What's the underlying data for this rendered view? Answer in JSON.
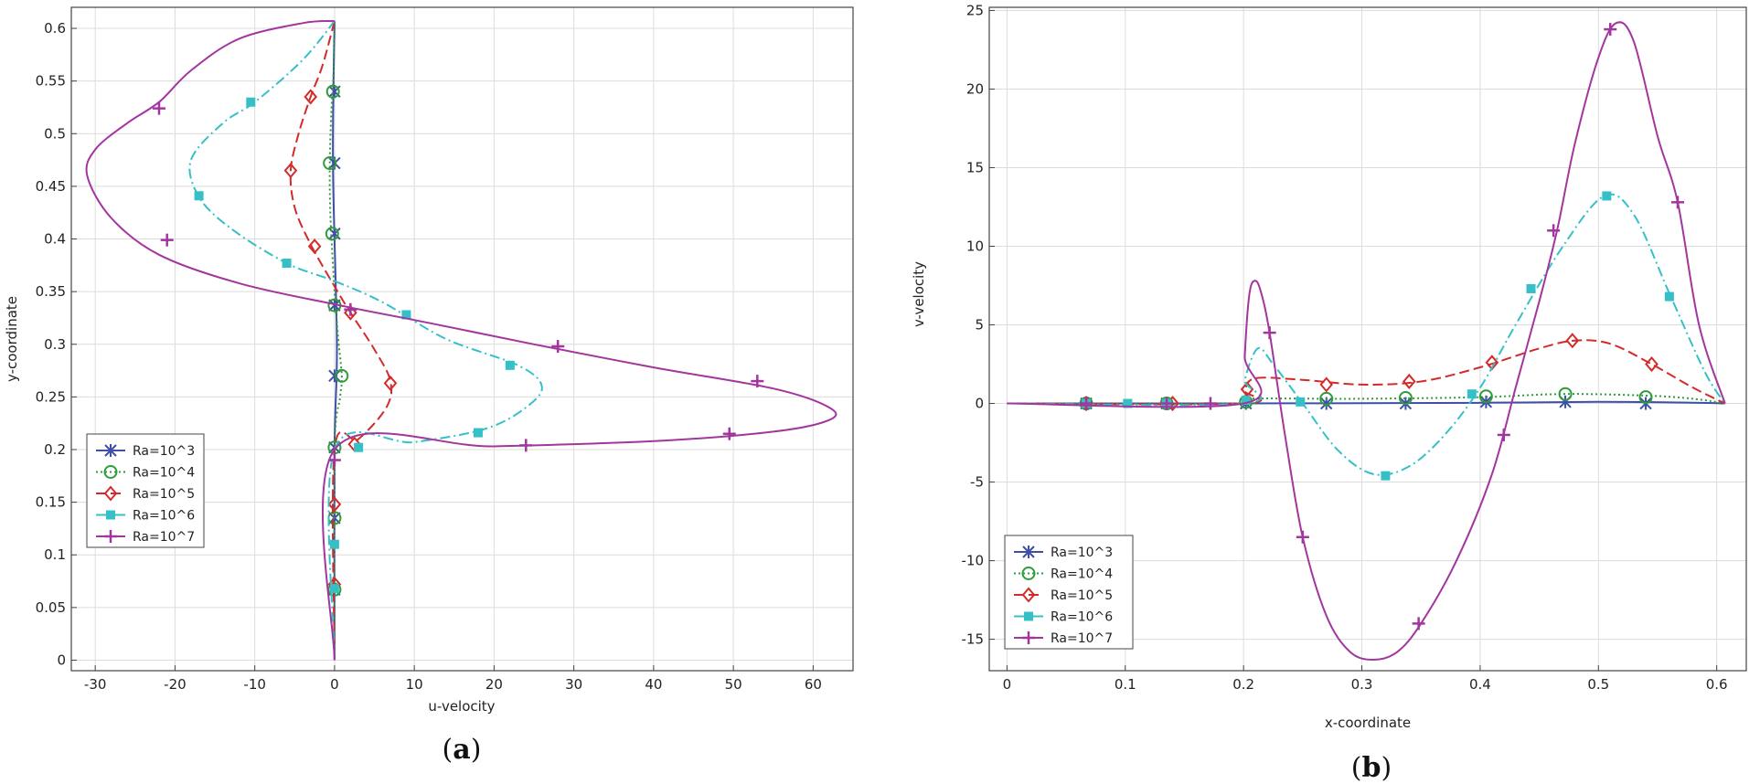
{
  "colors": {
    "ra3": "#3f4ea8",
    "ra4": "#2e9c3a",
    "ra5": "#d42a2a",
    "ra6": "#35c0c8",
    "ra7": "#a2369e"
  },
  "chart_data": [
    {
      "type": "line",
      "panel_label_paren_open": "(",
      "panel_label": "a",
      "panel_label_paren_close": ")",
      "xlabel": "u-velocity",
      "ylabel": "y-coordinate",
      "xlim": [
        -33,
        65
      ],
      "ylim": [
        -0.01,
        0.62
      ],
      "xticks": [
        -30,
        -20,
        -10,
        0,
        10,
        20,
        30,
        40,
        50,
        60
      ],
      "yticks": [
        0,
        0.05,
        0.1,
        0.15,
        0.2,
        0.25,
        0.3,
        0.35,
        0.4,
        0.45,
        0.5,
        0.55,
        0.6
      ],
      "grid": true,
      "legend_position": "bottom-left",
      "series": [
        {
          "name": "Ra=10^3",
          "style": "solid",
          "marker": "asterisk",
          "points": [
            [
              0,
              0
            ],
            [
              0,
              0.2
            ],
            [
              0.3,
              0.3
            ],
            [
              -0.2,
              0.47
            ],
            [
              0,
              0.607
            ]
          ],
          "markers": [
            [
              0,
              0.067
            ],
            [
              0,
              0.135
            ],
            [
              0,
              0.202
            ],
            [
              0,
              0.27
            ],
            [
              0,
              0.337
            ],
            [
              0,
              0.405
            ],
            [
              0,
              0.472
            ],
            [
              0,
              0.54
            ]
          ]
        },
        {
          "name": "Ra=10^4",
          "style": "dotted",
          "marker": "circle",
          "points": [
            [
              0,
              0
            ],
            [
              0,
              0.2
            ],
            [
              0.7,
              0.25
            ],
            [
              0.9,
              0.27
            ],
            [
              0.4,
              0.31
            ],
            [
              0,
              0.35
            ],
            [
              -0.5,
              0.42
            ],
            [
              -0.6,
              0.47
            ],
            [
              -0.4,
              0.52
            ],
            [
              -0.1,
              0.56
            ],
            [
              0,
              0.607
            ]
          ],
          "markers": [
            [
              0,
              0.067
            ],
            [
              0,
              0.135
            ],
            [
              0,
              0.202
            ],
            [
              0.9,
              0.27
            ],
            [
              0,
              0.337
            ],
            [
              -0.3,
              0.405
            ],
            [
              -0.6,
              0.472
            ],
            [
              -0.2,
              0.54
            ]
          ]
        },
        {
          "name": "Ra=10^5",
          "style": "dashed",
          "marker": "diamond",
          "points": [
            [
              0,
              0
            ],
            [
              0,
              0.2
            ],
            [
              3,
              0.21
            ],
            [
              6.5,
              0.24
            ],
            [
              7,
              0.265
            ],
            [
              5,
              0.295
            ],
            [
              2,
              0.33
            ],
            [
              0,
              0.355
            ],
            [
              -3,
              0.395
            ],
            [
              -5,
              0.43
            ],
            [
              -5.5,
              0.465
            ],
            [
              -4.5,
              0.5
            ],
            [
              -3,
              0.535
            ],
            [
              -1.5,
              0.565
            ],
            [
              0,
              0.607
            ]
          ],
          "markers": [
            [
              0,
              0.072
            ],
            [
              0,
              0.148
            ],
            [
              2.5,
              0.205
            ],
            [
              7,
              0.263
            ],
            [
              2,
              0.33
            ],
            [
              -2.5,
              0.393
            ],
            [
              -5.5,
              0.465
            ],
            [
              -3,
              0.535
            ]
          ]
        },
        {
          "name": "Ra=10^6",
          "style": "dashdot",
          "marker": "square",
          "points": [
            [
              0,
              0
            ],
            [
              0,
              0.2
            ],
            [
              10,
              0.207
            ],
            [
              19,
              0.22
            ],
            [
              24,
              0.24
            ],
            [
              26,
              0.26
            ],
            [
              23,
              0.28
            ],
            [
              14,
              0.305
            ],
            [
              6,
              0.34
            ],
            [
              0,
              0.36
            ],
            [
              -6,
              0.377
            ],
            [
              -13,
              0.41
            ],
            [
              -17,
              0.44
            ],
            [
              -18,
              0.475
            ],
            [
              -14,
              0.51
            ],
            [
              -10,
              0.53
            ],
            [
              -4,
              0.57
            ],
            [
              0,
              0.607
            ]
          ],
          "markers": [
            [
              0,
              0.068
            ],
            [
              0,
              0.11
            ],
            [
              3,
              0.202
            ],
            [
              18,
              0.216
            ],
            [
              22,
              0.28
            ],
            [
              9,
              0.328
            ],
            [
              -6,
              0.377
            ],
            [
              -17,
              0.441
            ],
            [
              -10.5,
              0.53
            ]
          ]
        },
        {
          "name": "Ra=10^7",
          "style": "solid",
          "marker": "plus",
          "points": [
            [
              0,
              0
            ],
            [
              0,
              0.2
            ],
            [
              20,
              0.203
            ],
            [
              40,
              0.208
            ],
            [
              55,
              0.217
            ],
            [
              62,
              0.228
            ],
            [
              62,
              0.24
            ],
            [
              55,
              0.258
            ],
            [
              40,
              0.278
            ],
            [
              25,
              0.3
            ],
            [
              12,
              0.32
            ],
            [
              0,
              0.338
            ],
            [
              -12,
              0.358
            ],
            [
              -22,
              0.385
            ],
            [
              -28,
              0.42
            ],
            [
              -31,
              0.46
            ],
            [
              -30,
              0.485
            ],
            [
              -26,
              0.51
            ],
            [
              -22,
              0.53
            ],
            [
              -18,
              0.56
            ],
            [
              -12,
              0.59
            ],
            [
              -4,
              0.605
            ],
            [
              0,
              0.607
            ]
          ],
          "markers": [
            [
              0,
              0.19
            ],
            [
              24,
              0.204
            ],
            [
              49.5,
              0.215
            ],
            [
              53,
              0.265
            ],
            [
              28,
              0.298
            ],
            [
              2,
              0.333
            ],
            [
              -21,
              0.399
            ],
            [
              -22,
              0.524
            ]
          ]
        }
      ]
    },
    {
      "type": "line",
      "panel_label_paren_open": "(",
      "panel_label": "b",
      "panel_label_paren_close": ")",
      "xlabel": "x-coordinate",
      "ylabel": "v-velocity",
      "xlim": [
        -0.015,
        0.625
      ],
      "ylim": [
        -17,
        25.2
      ],
      "xticks": [
        0,
        0.1,
        0.2,
        0.3,
        0.4,
        0.5,
        0.6
      ],
      "yticks": [
        -15,
        -10,
        -5,
        0,
        5,
        10,
        15,
        20,
        25
      ],
      "grid": true,
      "legend_position": "bottom-left",
      "series": [
        {
          "name": "Ra=10^3",
          "style": "solid",
          "marker": "asterisk",
          "points": [
            [
              0,
              0
            ],
            [
              0.2,
              0
            ],
            [
              0.3,
              0.02
            ],
            [
              0.4,
              0.04
            ],
            [
              0.5,
              0.1
            ],
            [
              0.58,
              0.05
            ],
            [
              0.607,
              0
            ]
          ],
          "markers": [
            [
              0.067,
              0
            ],
            [
              0.135,
              0
            ],
            [
              0.202,
              0
            ],
            [
              0.27,
              0
            ],
            [
              0.337,
              0
            ],
            [
              0.405,
              0.1
            ],
            [
              0.472,
              0.1
            ],
            [
              0.54,
              0
            ]
          ]
        },
        {
          "name": "Ra=10^4",
          "style": "dotted",
          "marker": "circle",
          "points": [
            [
              0,
              0
            ],
            [
              0.2,
              0
            ],
            [
              0.202,
              0.3
            ],
            [
              0.3,
              0.3
            ],
            [
              0.4,
              0.4
            ],
            [
              0.47,
              0.6
            ],
            [
              0.54,
              0.5
            ],
            [
              0.58,
              0.3
            ],
            [
              0.607,
              0
            ]
          ],
          "markers": [
            [
              0.067,
              0
            ],
            [
              0.135,
              0
            ],
            [
              0.202,
              0.1
            ],
            [
              0.27,
              0.3
            ],
            [
              0.337,
              0.35
            ],
            [
              0.405,
              0.45
            ],
            [
              0.472,
              0.6
            ],
            [
              0.54,
              0.4
            ]
          ]
        },
        {
          "name": "Ra=10^5",
          "style": "dashed",
          "marker": "diamond",
          "points": [
            [
              0,
              0
            ],
            [
              0.2,
              0
            ],
            [
              0.201,
              0.8
            ],
            [
              0.21,
              1.6
            ],
            [
              0.25,
              1.5
            ],
            [
              0.3,
              1.2
            ],
            [
              0.35,
              1.4
            ],
            [
              0.4,
              2.3
            ],
            [
              0.45,
              3.5
            ],
            [
              0.48,
              4.0
            ],
            [
              0.51,
              3.8
            ],
            [
              0.545,
              2.5
            ],
            [
              0.58,
              1.0
            ],
            [
              0.607,
              0
            ]
          ],
          "markers": [
            [
              0.067,
              0
            ],
            [
              0.14,
              0
            ],
            [
              0.203,
              0.9
            ],
            [
              0.27,
              1.2
            ],
            [
              0.34,
              1.4
            ],
            [
              0.41,
              2.6
            ],
            [
              0.478,
              4.0
            ],
            [
              0.545,
              2.5
            ]
          ]
        },
        {
          "name": "Ra=10^6",
          "style": "dashdot",
          "marker": "square",
          "points": [
            [
              0,
              0
            ],
            [
              0.2,
              0
            ],
            [
              0.201,
              1.5
            ],
            [
              0.212,
              3.5
            ],
            [
              0.225,
              2.5
            ],
            [
              0.25,
              0
            ],
            [
              0.28,
              -3
            ],
            [
              0.31,
              -4.5
            ],
            [
              0.34,
              -4
            ],
            [
              0.37,
              -2
            ],
            [
              0.4,
              1
            ],
            [
              0.43,
              5
            ],
            [
              0.47,
              10
            ],
            [
              0.505,
              13.2
            ],
            [
              0.53,
              12
            ],
            [
              0.56,
              7
            ],
            [
              0.59,
              2
            ],
            [
              0.607,
              0
            ]
          ],
          "markers": [
            [
              0.067,
              0
            ],
            [
              0.102,
              0
            ],
            [
              0.135,
              0
            ],
            [
              0.202,
              0.2
            ],
            [
              0.248,
              0.1
            ],
            [
              0.32,
              -4.6
            ],
            [
              0.393,
              0.6
            ],
            [
              0.443,
              7.3
            ],
            [
              0.507,
              13.2
            ],
            [
              0.56,
              6.8
            ]
          ]
        },
        {
          "name": "Ra=10^7",
          "style": "solid",
          "marker": "plus",
          "points": [
            [
              0,
              0
            ],
            [
              0.2,
              0
            ],
            [
              0.201,
              3
            ],
            [
              0.205,
              7
            ],
            [
              0.21,
              7.8
            ],
            [
              0.215,
              7
            ],
            [
              0.222,
              4.5
            ],
            [
              0.235,
              -2
            ],
            [
              0.25,
              -8.5
            ],
            [
              0.27,
              -13.5
            ],
            [
              0.29,
              -15.8
            ],
            [
              0.31,
              -16.3
            ],
            [
              0.33,
              -15.8
            ],
            [
              0.35,
              -14
            ],
            [
              0.38,
              -10
            ],
            [
              0.41,
              -4.5
            ],
            [
              0.43,
              1
            ],
            [
              0.45,
              6.5
            ],
            [
              0.465,
              11
            ],
            [
              0.48,
              16.5
            ],
            [
              0.5,
              22
            ],
            [
              0.515,
              24.2
            ],
            [
              0.53,
              23
            ],
            [
              0.55,
              17
            ],
            [
              0.567,
              12.8
            ],
            [
              0.585,
              5
            ],
            [
              0.607,
              0
            ]
          ],
          "markers": [
            [
              0.067,
              0
            ],
            [
              0.135,
              0
            ],
            [
              0.172,
              0
            ],
            [
              0.222,
              4.5
            ],
            [
              0.25,
              -8.5
            ],
            [
              0.348,
              -14
            ],
            [
              0.42,
              -2
            ],
            [
              0.462,
              11
            ],
            [
              0.51,
              23.8
            ],
            [
              0.567,
              12.8
            ]
          ]
        }
      ]
    }
  ]
}
